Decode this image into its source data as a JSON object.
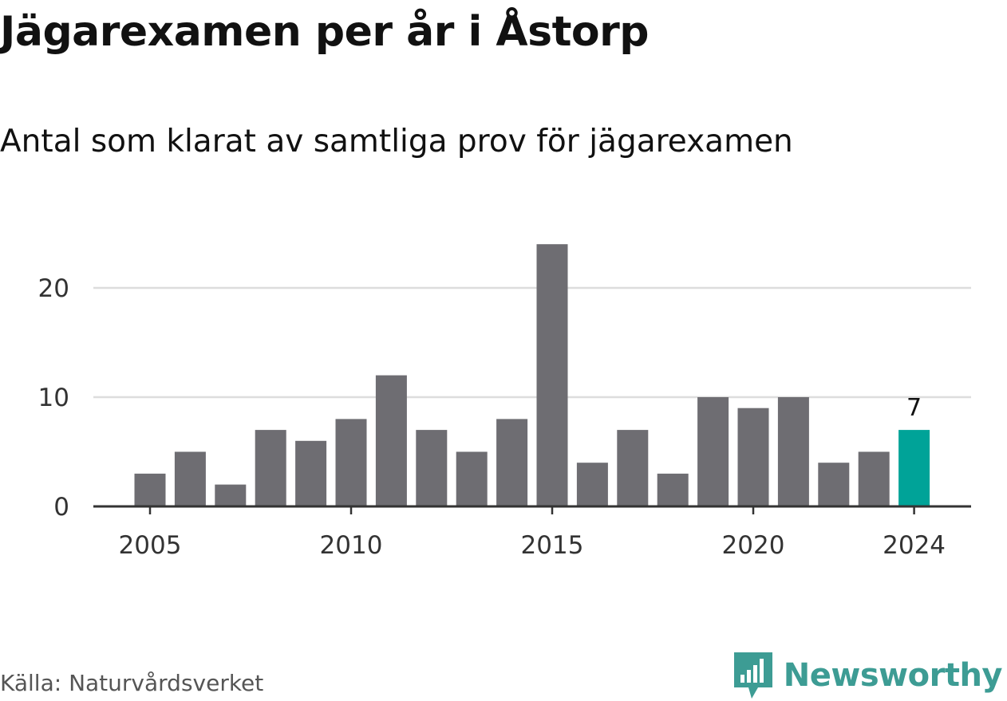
{
  "title": "Jägarexamen per år i Åstorp",
  "subtitle": "Antal som klarat av samtliga prov för jägarexamen",
  "source": "Källa: Naturvårdsverket",
  "brand": {
    "name": "Newsworthy",
    "icon": "newsworthy-logo-icon",
    "color": "#3d9c94"
  },
  "colors": {
    "bar": "#6e6d72",
    "highlight": "#00a398",
    "grid": "#dddddd",
    "axis": "#333333"
  },
  "chart_data": {
    "type": "bar",
    "x": [
      2005,
      2006,
      2007,
      2008,
      2009,
      2010,
      2011,
      2012,
      2013,
      2014,
      2015,
      2016,
      2017,
      2018,
      2019,
      2020,
      2021,
      2022,
      2023,
      2024
    ],
    "values": [
      3,
      5,
      2,
      7,
      6,
      8,
      12,
      7,
      5,
      8,
      24,
      4,
      7,
      3,
      10,
      9,
      10,
      4,
      5,
      7
    ],
    "xticks": [
      "2005",
      "2010",
      "2015",
      "2020",
      "2024"
    ],
    "yticks": [
      "0",
      "10",
      "20"
    ],
    "ylim": [
      0,
      24
    ],
    "highlight": {
      "x": 2024,
      "label": "7"
    },
    "grid": true,
    "legend": "none"
  }
}
